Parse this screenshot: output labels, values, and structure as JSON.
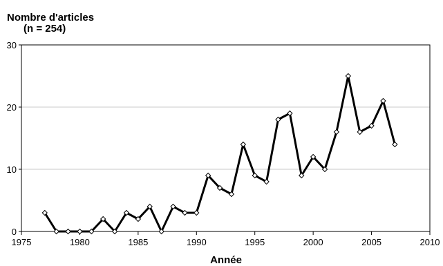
{
  "chart_data": {
    "type": "line",
    "ylabel_line1": "Nombre d'articles",
    "ylabel_line2": "(n = 254)",
    "xlabel": "Année",
    "xlim": [
      1975,
      2010
    ],
    "ylim": [
      0,
      30
    ],
    "x_ticks": [
      1975,
      1980,
      1985,
      1990,
      1995,
      2000,
      2005,
      2010
    ],
    "y_ticks": [
      0,
      10,
      20,
      30
    ],
    "grid": true,
    "colors": {
      "line": "#000000",
      "marker_fill": "#ffffff",
      "grid": "#c8c8c8",
      "frame": "#000000"
    },
    "series": [
      {
        "x": [
          1977,
          1978,
          1979,
          1980,
          1981,
          1982,
          1983,
          1984,
          1985,
          1986,
          1987,
          1988,
          1989,
          1990,
          1991,
          1992,
          1993,
          1994,
          1995,
          1996,
          1997,
          1998,
          1999,
          2000,
          2001,
          2002,
          2003,
          2004,
          2005,
          2006,
          2007
        ],
        "values": [
          3,
          0,
          0,
          0,
          0,
          2,
          0,
          3,
          2,
          4,
          0,
          4,
          3,
          3,
          9,
          7,
          6,
          14,
          9,
          8,
          18,
          19,
          9,
          12,
          10,
          16,
          25,
          16,
          17,
          21,
          14
        ]
      }
    ]
  }
}
